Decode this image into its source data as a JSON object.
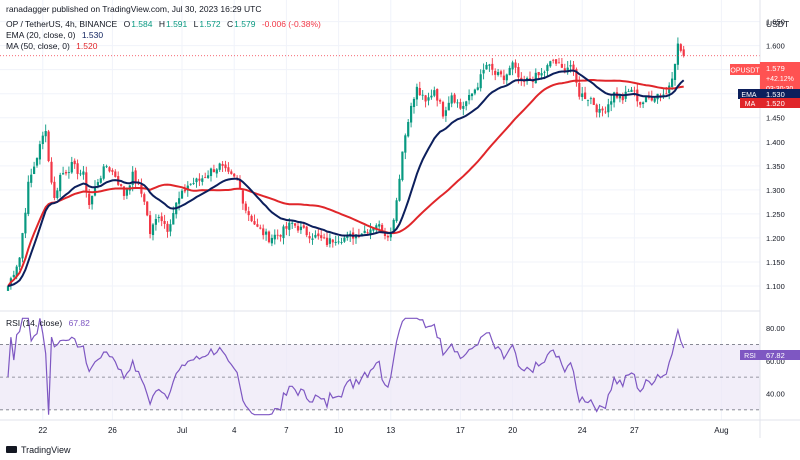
{
  "header": {
    "publisher": "ranadagger published on TradingView.com, Jul 30, 2023 16:29 UTC",
    "currency": "USDT"
  },
  "legend": {
    "symbol": "OP / TetherUS, 4h, BINANCE",
    "o_label": "O",
    "o_value": "1.584",
    "h_label": "H",
    "h_value": "1.591",
    "l_label": "L",
    "l_value": "1.572",
    "c_label": "C",
    "c_value": "1.579",
    "change": "-0.006 (-0.38%)",
    "ema_label": "EMA (20, close, 0)",
    "ema_value": "1.530",
    "ma_label": "MA (50, close, 0)",
    "ma_value": "1.520"
  },
  "rsi_legend": {
    "label": "RSI (14, close)",
    "value": "67.82"
  },
  "price_tags": {
    "symbol_tag": "OPUSDT",
    "price": "1.579",
    "pct": "+42.12%",
    "countdown": "03:30:30",
    "ema_tag": "EMA",
    "ema_value": "1.530",
    "ma_tag": "MA",
    "ma_value": "1.520",
    "rsi_tag": "RSI",
    "rsi_value": "67.82"
  },
  "footer": {
    "brand": "TradingView"
  },
  "colors": {
    "up": "#089981",
    "down": "#f23645",
    "ema": "#0c1f5c",
    "ma": "#e0262a",
    "rsi": "#7e57c2",
    "rsi_band": "#ede7f6",
    "grid": "#f0f3fa",
    "text": "#131722"
  },
  "chart_data": {
    "type": "candlestick",
    "title": "OP / TetherUS, 4h, BINANCE",
    "y_axis": {
      "ticks": [
        "1.650",
        "1.600",
        "1.550",
        "1.500",
        "1.450",
        "1.400",
        "1.350",
        "1.300",
        "1.250",
        "1.200",
        "1.150",
        "1.100"
      ],
      "range": [
        1.075,
        1.67
      ]
    },
    "x_axis": {
      "ticks": [
        "22",
        "26",
        "Jul",
        "4",
        "7",
        "10",
        "13",
        "17",
        "20",
        "24",
        "27",
        "Aug"
      ],
      "tick_candle_index": [
        12,
        36,
        60,
        78,
        96,
        114,
        132,
        156,
        174,
        198,
        216,
        246
      ]
    },
    "last_close": 1.579,
    "ema20_last": 1.53,
    "ma50_last": 1.52,
    "price_waypoints": [
      [
        0,
        1.1
      ],
      [
        4,
        1.16
      ],
      [
        7,
        1.31
      ],
      [
        10,
        1.37
      ],
      [
        13,
        1.43
      ],
      [
        14,
        1.36
      ],
      [
        16,
        1.28
      ],
      [
        18,
        1.33
      ],
      [
        22,
        1.35
      ],
      [
        26,
        1.33
      ],
      [
        28,
        1.27
      ],
      [
        31,
        1.32
      ],
      [
        34,
        1.35
      ],
      [
        37,
        1.33
      ],
      [
        40,
        1.29
      ],
      [
        43,
        1.33
      ],
      [
        47,
        1.28
      ],
      [
        49,
        1.21
      ],
      [
        52,
        1.25
      ],
      [
        55,
        1.22
      ],
      [
        58,
        1.27
      ],
      [
        62,
        1.31
      ],
      [
        66,
        1.32
      ],
      [
        70,
        1.34
      ],
      [
        73,
        1.35
      ],
      [
        76,
        1.33
      ],
      [
        79,
        1.32
      ],
      [
        82,
        1.26
      ],
      [
        86,
        1.22
      ],
      [
        90,
        1.2
      ],
      [
        94,
        1.21
      ],
      [
        98,
        1.23
      ],
      [
        103,
        1.21
      ],
      [
        107,
        1.2
      ],
      [
        110,
        1.19
      ],
      [
        113,
        1.2
      ],
      [
        117,
        1.2
      ],
      [
        121,
        1.21
      ],
      [
        125,
        1.22
      ],
      [
        127,
        1.23
      ],
      [
        130,
        1.21
      ],
      [
        132,
        1.21
      ],
      [
        134,
        1.28
      ],
      [
        136,
        1.38
      ],
      [
        138,
        1.45
      ],
      [
        141,
        1.51
      ],
      [
        144,
        1.48
      ],
      [
        147,
        1.51
      ],
      [
        150,
        1.46
      ],
      [
        153,
        1.5
      ],
      [
        156,
        1.47
      ],
      [
        159,
        1.49
      ],
      [
        162,
        1.52
      ],
      [
        165,
        1.56
      ],
      [
        168,
        1.54
      ],
      [
        171,
        1.53
      ],
      [
        174,
        1.56
      ],
      [
        177,
        1.52
      ],
      [
        180,
        1.53
      ],
      [
        184,
        1.54
      ],
      [
        188,
        1.57
      ],
      [
        191,
        1.55
      ],
      [
        194,
        1.56
      ],
      [
        197,
        1.5
      ],
      [
        201,
        1.49
      ],
      [
        204,
        1.46
      ],
      [
        206,
        1.47
      ],
      [
        209,
        1.5
      ],
      [
        212,
        1.49
      ],
      [
        215,
        1.51
      ],
      [
        218,
        1.48
      ],
      [
        221,
        1.49
      ],
      [
        224,
        1.5
      ],
      [
        227,
        1.5
      ],
      [
        229,
        1.54
      ],
      [
        231,
        1.6
      ],
      [
        233,
        1.58
      ]
    ],
    "rsi": {
      "name": "RSI (14, close)",
      "ticks": [
        "80.00",
        "60.00",
        "40.00"
      ],
      "range": [
        25,
        88
      ],
      "upper_band": 70,
      "lower_band": 30,
      "mid": 50,
      "last": 67.82
    }
  }
}
